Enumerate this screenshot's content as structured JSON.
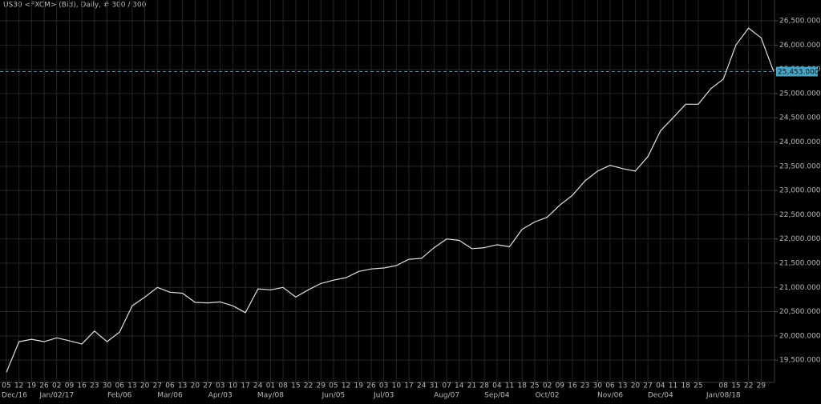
{
  "chart_data": {
    "type": "line",
    "title": "US30 <FXCM> (Bid), Daily, # 300 / 300",
    "categories": [
      "05",
      "12",
      "19",
      "26",
      "02",
      "09",
      "16",
      "23",
      "30",
      "06",
      "13",
      "20",
      "27",
      "06",
      "13",
      "20",
      "27",
      "03",
      "10",
      "17",
      "24",
      "01",
      "08",
      "15",
      "22",
      "29",
      "05",
      "12",
      "19",
      "26",
      "03",
      "10",
      "17",
      "24",
      "31",
      "07",
      "14",
      "21",
      "28",
      "04",
      "11",
      "18",
      "25",
      "02",
      "09",
      "16",
      "23",
      "30",
      "06",
      "13",
      "20",
      "27",
      "04",
      "11",
      "18",
      "25",
      null,
      "08",
      "15",
      "22",
      "29",
      null
    ],
    "month_labels": [
      "Dec/16",
      "Jan/02/17",
      "Feb/06",
      "Mar/06",
      "Apr/03",
      "May/08",
      "Jun/05",
      "Jul/03",
      "Aug/07",
      "Sep/04",
      "Oct/02",
      "Nov/06",
      "Dec/04",
      "Jan/08/18"
    ],
    "values": [
      19250,
      19880,
      19930,
      19880,
      19960,
      19900,
      19830,
      20100,
      19880,
      20080,
      20620,
      20800,
      21000,
      20900,
      20880,
      20690,
      20680,
      20700,
      20620,
      20480,
      20970,
      20950,
      21000,
      20800,
      20950,
      21080,
      21150,
      21200,
      21330,
      21380,
      21400,
      21450,
      21580,
      21600,
      21820,
      22000,
      21970,
      21800,
      21820,
      21880,
      21840,
      22200,
      22350,
      22450,
      22700,
      22900,
      23200,
      23400,
      23520,
      23450,
      23400,
      23700,
      24230,
      24500,
      24780,
      24780,
      25100,
      25300,
      26000,
      26350,
      26150,
      25453
    ],
    "color": "#e0e0e0",
    "ylim": [
      19040,
      26930
    ],
    "yticks": [
      {
        "value": 19500,
        "label": "19,500.000"
      },
      {
        "value": 20000,
        "label": "20,000.000"
      },
      {
        "value": 20500,
        "label": "20,500.000"
      },
      {
        "value": 21000,
        "label": "21,000.000"
      },
      {
        "value": 21500,
        "label": "21,500.000"
      },
      {
        "value": 22000,
        "label": "22,000.000"
      },
      {
        "value": 22500,
        "label": "22,500.000"
      },
      {
        "value": 23000,
        "label": "23,000.000"
      },
      {
        "value": 23500,
        "label": "23,500.000"
      },
      {
        "value": 24000,
        "label": "24,000.000"
      },
      {
        "value": 24500,
        "label": "24,500.000"
      },
      {
        "value": 25000,
        "label": "25,000.000"
      },
      {
        "value": 25500,
        "label": "25,500.000"
      },
      {
        "value": 26000,
        "label": "26,000.000"
      },
      {
        "value": 26500,
        "label": "26,500.000"
      }
    ],
    "last_price": {
      "value": 25453,
      "label": "25,453.000"
    },
    "grid": true
  }
}
